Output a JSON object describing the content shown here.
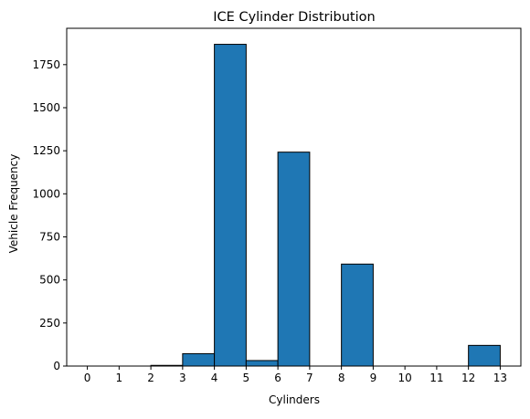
{
  "chart_data": {
    "type": "bar",
    "title": "ICE Cylinder Distribution",
    "xlabel": "Cylinders",
    "ylabel": "Vehicle Frequency",
    "bins": [
      {
        "start": 2,
        "end": 3,
        "value": 4
      },
      {
        "start": 3,
        "end": 4,
        "value": 72
      },
      {
        "start": 4,
        "end": 5,
        "value": 1868
      },
      {
        "start": 5,
        "end": 6,
        "value": 32
      },
      {
        "start": 6,
        "end": 7,
        "value": 1242
      },
      {
        "start": 8,
        "end": 9,
        "value": 592
      },
      {
        "start": 12,
        "end": 13,
        "value": 120
      }
    ],
    "xticks": [
      "0",
      "1",
      "2",
      "3",
      "4",
      "5",
      "6",
      "7",
      "8",
      "9",
      "10",
      "11",
      "12",
      "13"
    ],
    "yticks": [
      "0",
      "250",
      "500",
      "750",
      "1000",
      "1250",
      "1500",
      "1750"
    ],
    "xlim": [
      -0.65,
      13.65
    ],
    "ylim": [
      0,
      1961
    ],
    "colors": {
      "bar": "#1f77b4",
      "edge": "#000000"
    },
    "grid": false
  }
}
